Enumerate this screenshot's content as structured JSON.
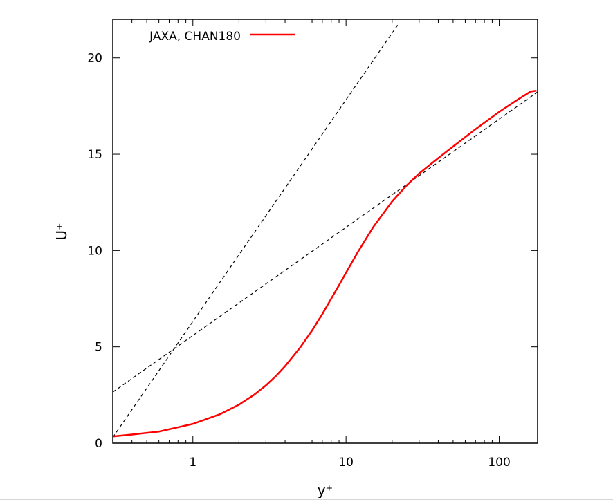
{
  "chart_data": {
    "type": "line",
    "title": "",
    "xlabel": "y⁺",
    "ylabel": "U⁺",
    "x_scale": "log",
    "xlim": [
      0.3,
      178
    ],
    "ylim": [
      0,
      22
    ],
    "x_ticks": [
      1,
      10,
      100
    ],
    "x_tick_labels": [
      "1",
      "10",
      "100"
    ],
    "y_ticks": [
      0,
      5,
      10,
      15,
      20
    ],
    "y_tick_labels": [
      "0",
      "5",
      "10",
      "15",
      "20"
    ],
    "grid": false,
    "legend_position": "top-left",
    "series": [
      {
        "name": "JAXA, CHAN180",
        "style": "solid",
        "color": "#ff0000",
        "x": [
          0.3,
          0.4,
          0.6,
          1.0,
          1.5,
          2.0,
          2.5,
          3.0,
          3.5,
          4.0,
          5.0,
          6.0,
          7.0,
          8.0,
          9.0,
          10.0,
          12.0,
          15.0,
          20.0,
          25.0,
          30.0,
          40.0,
          50.0,
          70.0,
          100.0,
          130.0,
          160.0,
          175.0
        ],
        "y": [
          0.35,
          0.45,
          0.6,
          1.0,
          1.5,
          2.0,
          2.5,
          3.0,
          3.5,
          4.0,
          4.95,
          5.85,
          6.7,
          7.5,
          8.2,
          8.85,
          9.95,
          11.2,
          12.55,
          13.4,
          14.0,
          14.8,
          15.4,
          16.3,
          17.2,
          17.8,
          18.25,
          18.3
        ]
      },
      {
        "name": "",
        "style": "dashed",
        "color": "#000000",
        "x": [
          0.3,
          21.7
        ],
        "y": [
          0.3,
          21.7
        ]
      },
      {
        "name": "",
        "style": "dashed",
        "color": "#000000",
        "x": [
          0.3,
          178
        ],
        "y": [
          2.65,
          18.23
        ]
      }
    ]
  }
}
